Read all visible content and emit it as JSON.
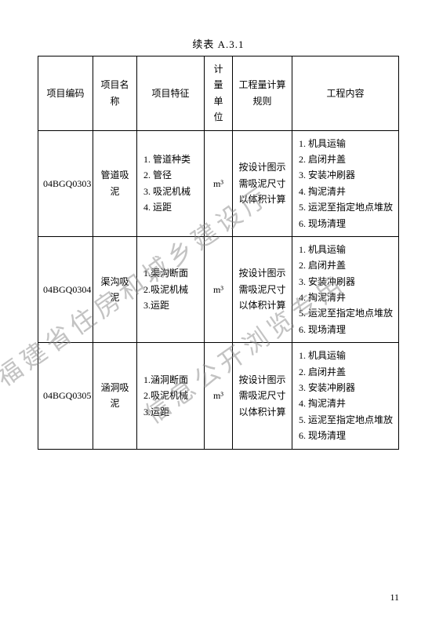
{
  "title": "续表 A.3.1",
  "columns": [
    "项目编码",
    "项目名称",
    "项目特征",
    "计量单位",
    "工程量计算规则",
    "工程内容"
  ],
  "unit_header_lines": [
    "计量",
    "单位"
  ],
  "rule_header_lines": [
    "工程量计算",
    "规则"
  ],
  "rows": [
    {
      "code": "04BGQ0303",
      "name": "管道吸泥",
      "features": [
        "1. 管道种类",
        "2. 管径",
        "3. 吸泥机械",
        "4. 运距"
      ],
      "unit": "m³",
      "rule": "按设计图示需吸泥尺寸以体积计算",
      "contents": [
        "1. 机具运输",
        "2. 启闭井盖",
        "3. 安装冲刷器",
        "4. 掏泥清井",
        "5. 运泥至指定地点堆放",
        "6. 现场清理"
      ]
    },
    {
      "code": "04BGQ0304",
      "name": "渠沟吸泥",
      "features": [
        "1.渠沟断面",
        "2.吸泥机械",
        "3.运距"
      ],
      "unit": "m³",
      "rule": "按设计图示需吸泥尺寸以体积计算",
      "contents": [
        "1. 机具运输",
        "2. 启闭井盖",
        "3. 安装冲刷器",
        "4. 掏泥清井",
        "5. 运泥至指定地点堆放",
        "6. 现场清理"
      ]
    },
    {
      "code": "04BGQ0305",
      "name": "涵洞吸泥",
      "features": [
        "1.涵洞断面",
        "2.吸泥机械",
        "3.运距"
      ],
      "unit": "m³",
      "rule": "按设计图示需吸泥尺寸以体积计算",
      "contents": [
        "1. 机具运输",
        "2. 启闭井盖",
        "3. 安装冲刷器",
        "4. 掏泥清井",
        "5. 运泥至指定地点堆放",
        "6. 现场清理"
      ]
    }
  ],
  "watermarks": [
    "福建省住房和城乡建设厅",
    "信息公开浏览专用"
  ],
  "page_number": "11",
  "colors": {
    "text": "#000000",
    "border": "#000000",
    "background": "#ffffff",
    "watermark": "#888888"
  },
  "fonts": {
    "body_size_pt": 12,
    "title_size_pt": 13,
    "watermark_size_pt": 32
  }
}
